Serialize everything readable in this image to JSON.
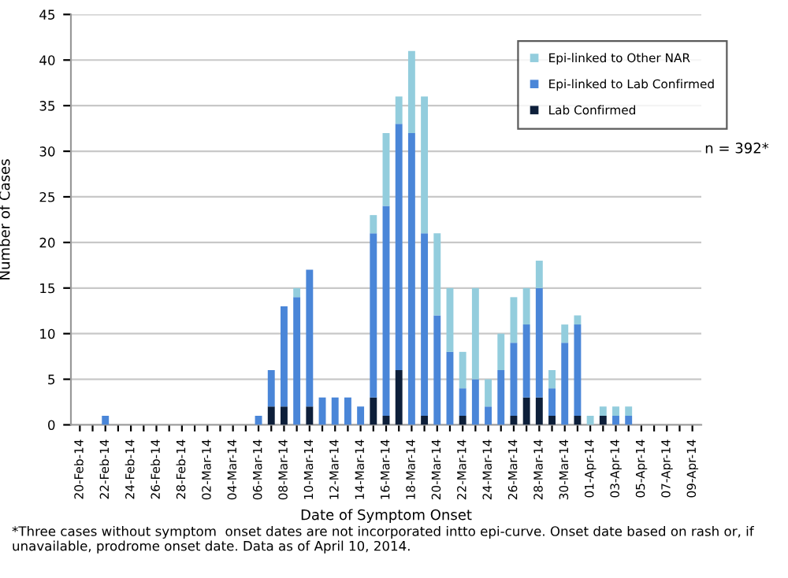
{
  "chart_data": {
    "type": "bar",
    "stacked": true,
    "xlabel": "Date of Symptom Onset",
    "ylabel": "Number of Cases",
    "categories": [
      "20-Feb-14",
      null,
      "22-Feb-14",
      null,
      "24-Feb-14",
      null,
      "26-Feb-14",
      null,
      "28-Feb-14",
      null,
      "02-Mar-14",
      null,
      "04-Mar-14",
      null,
      "06-Mar-14",
      null,
      "08-Mar-14",
      null,
      "10-Mar-14",
      null,
      "12-Mar-14",
      null,
      "14-Mar-14",
      null,
      "16-Mar-14",
      null,
      "18-Mar-14",
      null,
      "20-Mar-14",
      null,
      "22-Mar-14",
      null,
      "24-Mar-14",
      null,
      "26-Mar-14",
      null,
      "28-Mar-14",
      null,
      "30-Mar-14",
      null,
      "01-Apr-14",
      null,
      "03-Apr-14",
      null,
      "05-Apr-14",
      null,
      "07-Apr-14",
      null,
      "09-Apr-14"
    ],
    "series": [
      {
        "name": "Lab Confirmed",
        "color": "#0d1f3a",
        "values": [
          0,
          0,
          0,
          0,
          0,
          0,
          0,
          0,
          0,
          0,
          0,
          0,
          0,
          0,
          0,
          2,
          2,
          0,
          2,
          0,
          0,
          0,
          0,
          3,
          1,
          6,
          0,
          1,
          0,
          0,
          1,
          0,
          0,
          0,
          1,
          3,
          3,
          1,
          0,
          1,
          0,
          1,
          0,
          0,
          0,
          0,
          0,
          0,
          0
        ]
      },
      {
        "name": "Epi-linked to Lab Confirmed",
        "color": "#4a86d8",
        "values": [
          0,
          0,
          1,
          0,
          0,
          0,
          0,
          0,
          0,
          0,
          0,
          0,
          0,
          0,
          1,
          4,
          11,
          14,
          15,
          3,
          3,
          3,
          2,
          18,
          23,
          27,
          32,
          20,
          12,
          8,
          3,
          5,
          2,
          6,
          8,
          8,
          12,
          3,
          9,
          10,
          0,
          0,
          1,
          1,
          0,
          0,
          0,
          0,
          0
        ]
      },
      {
        "name": "Epi-linked to Other NAR",
        "color": "#93cddd",
        "values": [
          0,
          0,
          0,
          0,
          0,
          0,
          0,
          0,
          0,
          0,
          0,
          0,
          0,
          0,
          0,
          0,
          0,
          1,
          0,
          0,
          0,
          0,
          0,
          2,
          8,
          3,
          9,
          15,
          9,
          7,
          4,
          10,
          3,
          4,
          5,
          4,
          3,
          2,
          2,
          1,
          1,
          1,
          1,
          1,
          0,
          0,
          0,
          0,
          0
        ]
      }
    ],
    "ylim": [
      0,
      45
    ],
    "yticks": [
      0,
      5,
      10,
      15,
      20,
      25,
      30,
      35,
      40,
      45
    ],
    "grid": "y",
    "legend": "top right",
    "annotations": [
      "n = 392*",
      "*Three cases without symptom  onset dates are not incorporated intto epi-curve. Onset date based on rash or, if unavailable, prodrome onset date. Data as of April 10, 2014."
    ]
  }
}
